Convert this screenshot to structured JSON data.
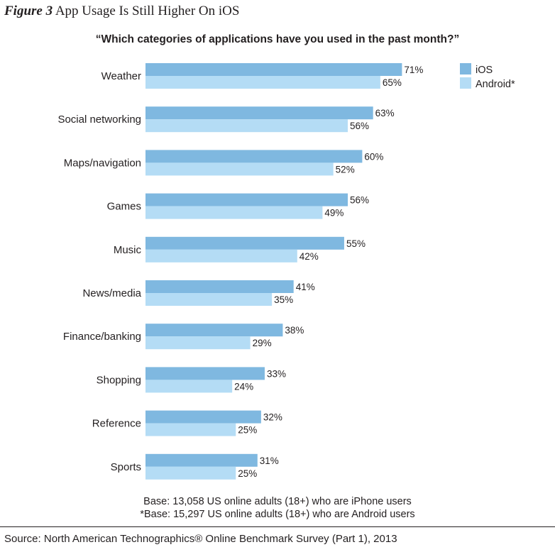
{
  "figure": {
    "label": "Figure 3",
    "title": "App Usage Is Still Higher On iOS"
  },
  "chart_data": {
    "type": "bar",
    "orientation": "horizontal",
    "title": "“Which categories of applications have you used in the past month?”",
    "categories": [
      "Weather",
      "Social networking",
      "Maps/navigation",
      "Games",
      "Music",
      "News/media",
      "Finance/banking",
      "Shopping",
      "Reference",
      "Sports"
    ],
    "series": [
      {
        "name": "iOS",
        "color": "#7fb8e0",
        "values": [
          71,
          63,
          60,
          56,
          55,
          41,
          38,
          33,
          32,
          31
        ]
      },
      {
        "name": "Android*",
        "color": "#b4dcf5",
        "values": [
          65,
          56,
          52,
          49,
          42,
          35,
          29,
          24,
          25,
          25
        ]
      }
    ],
    "value_suffix": "%",
    "xlim": [
      0,
      100
    ],
    "legend_position": "top-right",
    "grid": false
  },
  "notes": [
    "Base: 13,058 US online adults (18+) who are iPhone users",
    "*Base: 15,297 US online adults (18+) who are Android users"
  ],
  "source": "Source: North American Technographics® Online Benchmark Survey (Part 1), 2013"
}
